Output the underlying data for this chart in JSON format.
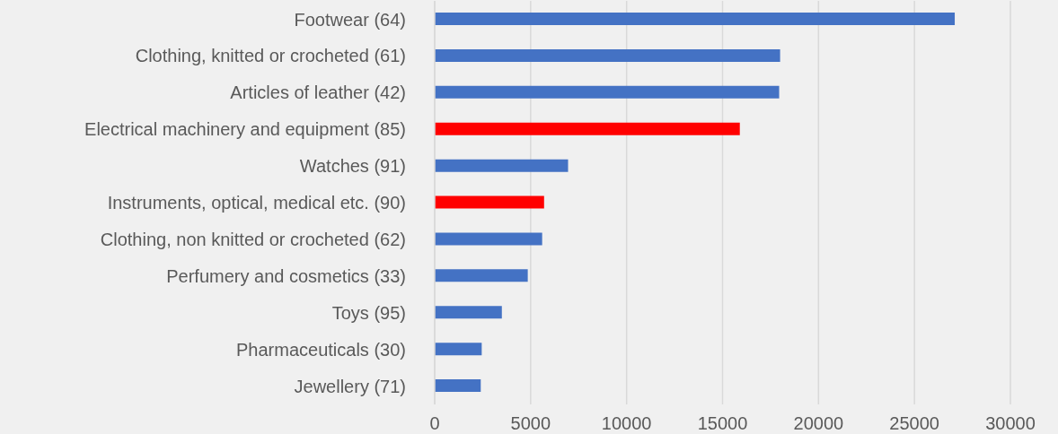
{
  "chart_data": {
    "type": "bar",
    "orientation": "horizontal",
    "categories": [
      "Footwear (64)",
      "Clothing, knitted or crocheted (61)",
      "Articles of leather (42)",
      "Electrical machinery and equipment (85)",
      "Watches (91)",
      "Instruments, optical, medical etc. (90)",
      "Clothing, non knitted or crocheted (62)",
      "Perfumery and cosmetics (33)",
      "Toys (95)",
      "Pharmaceuticals (30)",
      "Jewellery (71)"
    ],
    "values": [
      27100,
      18000,
      17950,
      15900,
      6950,
      5700,
      5600,
      4850,
      3500,
      2450,
      2400
    ],
    "colors": [
      "#4472c4",
      "#4472c4",
      "#4472c4",
      "#ff0000",
      "#4472c4",
      "#ff0000",
      "#4472c4",
      "#4472c4",
      "#4472c4",
      "#4472c4",
      "#4472c4"
    ],
    "xlim": [
      0,
      30000
    ],
    "xticks": [
      0,
      5000,
      10000,
      15000,
      20000,
      25000,
      30000
    ],
    "grid": "x"
  }
}
